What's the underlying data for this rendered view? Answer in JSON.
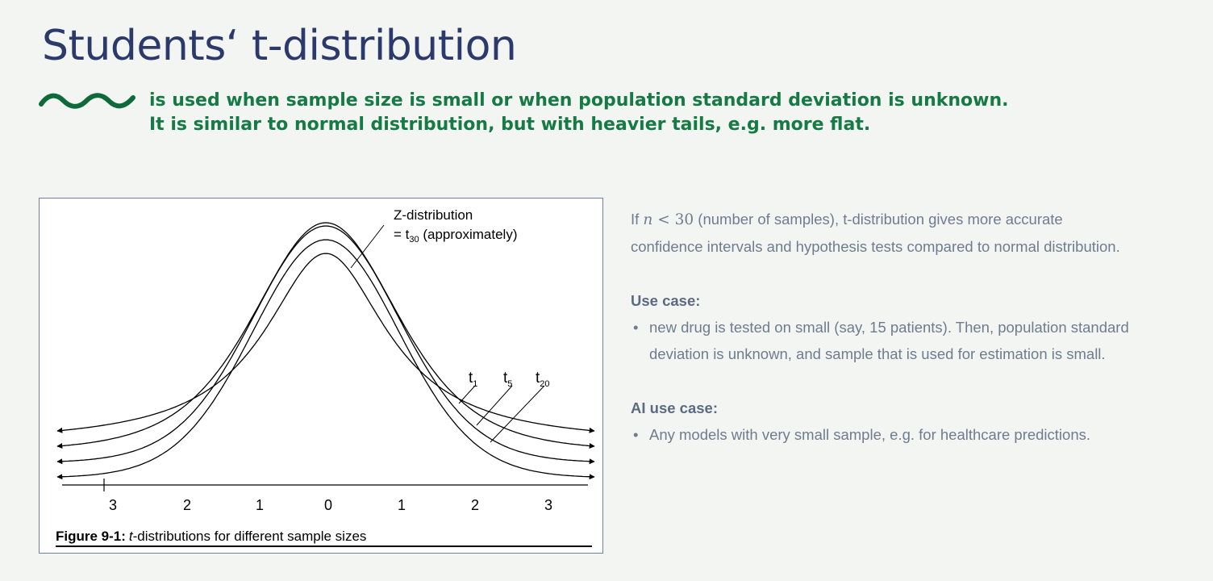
{
  "slide": {
    "title": "Students‘ t-distribution",
    "subtitle_line1": "is used when sample size is small or when population standard deviation is unknown.",
    "subtitle_line2": "It is similar to normal distribution, but with heavier tails, e.g. more flat.",
    "decorative_icon": "wave-icon",
    "colors": {
      "title": "#2c3a6b",
      "subtitle": "#167a45",
      "body_text": "#6f7c8f",
      "frame_border": "#6e7fa6"
    }
  },
  "figure": {
    "caption_bold": "Figure 9-1:",
    "caption_italic": "t",
    "caption_rest": "-distributions for different sample sizes",
    "annotation_line1": "Z-distribution",
    "annotation_line2_pre": "= t",
    "annotation_line2_sub": "30",
    "annotation_line2_post": " (approximately)",
    "curve_labels": [
      {
        "base": "t",
        "sub": "1"
      },
      {
        "base": "t",
        "sub": "5"
      },
      {
        "base": "t",
        "sub": "20"
      }
    ],
    "x_tick_labels": [
      "3",
      "2",
      "1",
      "0",
      "1",
      "2",
      "3"
    ]
  },
  "chart_data": {
    "type": "line",
    "x": [
      -3,
      -2,
      -1,
      0,
      1,
      2,
      3
    ],
    "series": [
      {
        "name": "t1",
        "df": 1,
        "peak_density": 0.318
      },
      {
        "name": "t5",
        "df": 5,
        "peak_density": 0.38
      },
      {
        "name": "t20",
        "df": 20,
        "peak_density": 0.394
      },
      {
        "name": "t30",
        "df": 30,
        "peak_density": 0.396
      }
    ],
    "xlim": [
      -3.6,
      3.6
    ],
    "ylim": [
      0,
      0.42
    ],
    "grid": false,
    "arrows_at_ends": true
  },
  "text": {
    "para1_pre": "If ",
    "para1_math_var": "n",
    "para1_math_rest": " < 30",
    "para1_post": " (number of samples), t-distribution gives more accurate",
    "para1_line2": "confidence intervals and hypothesis tests compared to normal distribution.",
    "use_case_heading": "Use case:",
    "use_case_line1": "new drug is tested on small (say, 15 patients). Then, population standard",
    "use_case_line2": "deviation is unknown, and sample that is used for estimation is small.",
    "ai_use_case_heading": "AI use case:",
    "ai_use_case_item": "Any models with very small sample, e.g. for healthcare predictions."
  }
}
